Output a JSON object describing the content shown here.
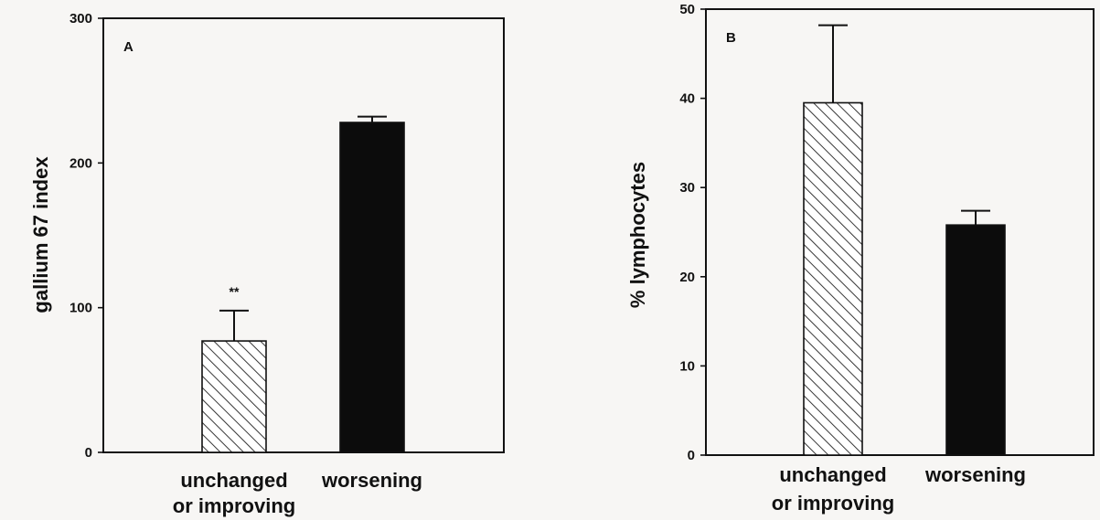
{
  "chart_data": [
    {
      "type": "bar",
      "panel_label": "A",
      "ylabel": "gallium 67 index",
      "ylim": [
        0,
        300
      ],
      "yticks": [
        0,
        100,
        200,
        300
      ],
      "categories": [
        "unchanged\nor improving",
        "worsening"
      ],
      "values": [
        77,
        228
      ],
      "error_bars": [
        21,
        4
      ],
      "annotations": [
        "**",
        ""
      ],
      "styles": [
        "hatched",
        "solid"
      ]
    },
    {
      "type": "bar",
      "panel_label": "B",
      "ylabel": "% lymphocytes",
      "ylim": [
        0,
        50
      ],
      "yticks": [
        0,
        10,
        20,
        30,
        40,
        50
      ],
      "categories": [
        "unchanged\nor improving",
        "worsening"
      ],
      "values": [
        39.5,
        25.8
      ],
      "error_bars": [
        8.7,
        1.6
      ],
      "annotations": [
        "",
        ""
      ],
      "styles": [
        "hatched",
        "solid"
      ]
    }
  ]
}
